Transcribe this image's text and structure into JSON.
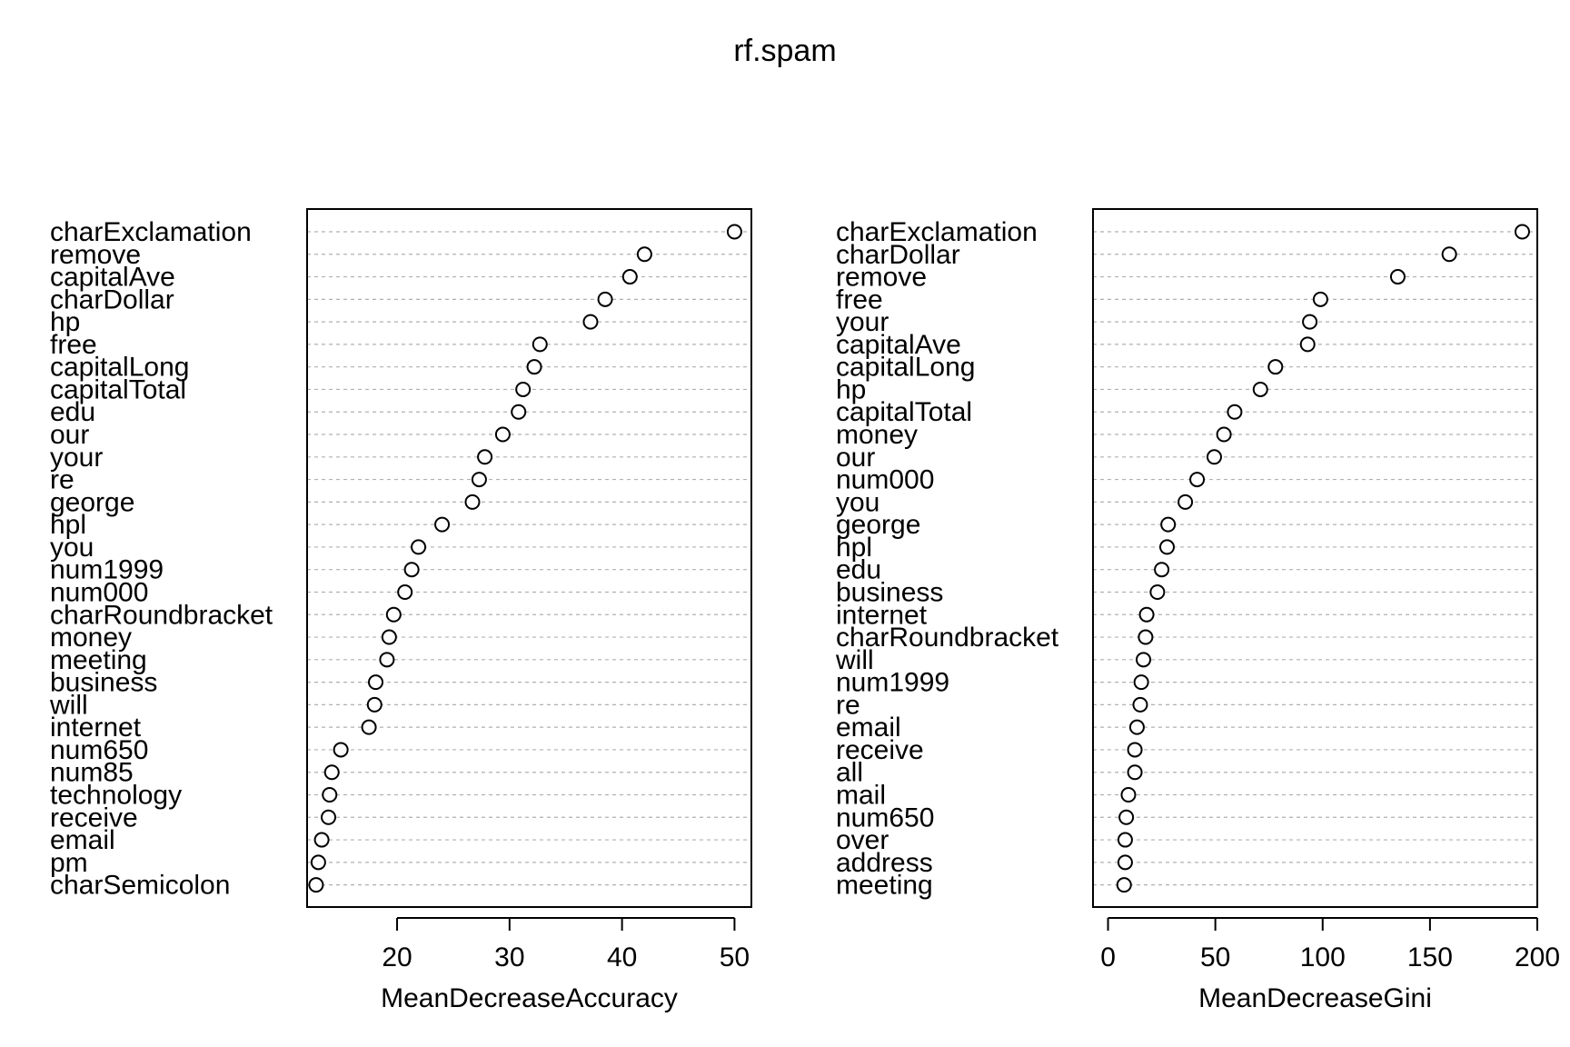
{
  "title": "rf.spam",
  "chart_data": [
    {
      "type": "scatter",
      "subtype": "dotchart",
      "xlabel": "MeanDecreaseAccuracy",
      "ylabel": "",
      "xlim": [
        12,
        51.5
      ],
      "xticks": [
        20,
        30,
        40,
        50
      ],
      "grid": "horizontal dotted",
      "categories": [
        "charExclamation",
        "remove",
        "capitalAve",
        "charDollar",
        "hp",
        "free",
        "capitalLong",
        "capitalTotal",
        "edu",
        "our",
        "your",
        "re",
        "george",
        "hpl",
        "you",
        "num1999",
        "num000",
        "charRoundbracket",
        "money",
        "meeting",
        "business",
        "will",
        "internet",
        "num650",
        "num85",
        "technology",
        "receive",
        "email",
        "pm",
        "charSemicolon"
      ],
      "values": [
        50.0,
        42.0,
        40.7,
        38.5,
        37.2,
        32.7,
        32.2,
        31.2,
        30.8,
        29.4,
        27.8,
        27.3,
        26.7,
        24.0,
        21.9,
        21.3,
        20.7,
        19.7,
        19.3,
        19.1,
        18.1,
        18.0,
        17.5,
        15.0,
        14.2,
        14.0,
        13.9,
        13.3,
        13.0,
        12.8
      ]
    },
    {
      "type": "scatter",
      "subtype": "dotchart",
      "xlabel": "MeanDecreaseGini",
      "ylabel": "",
      "xlim": [
        -7,
        200
      ],
      "xticks": [
        0,
        50,
        100,
        150,
        200
      ],
      "grid": "horizontal dotted",
      "categories": [
        "charExclamation",
        "charDollar",
        "remove",
        "free",
        "your",
        "capitalAve",
        "capitalLong",
        "hp",
        "capitalTotal",
        "money",
        "our",
        "num000",
        "you",
        "george",
        "hpl",
        "edu",
        "business",
        "internet",
        "charRoundbracket",
        "will",
        "num1999",
        "re",
        "email",
        "receive",
        "all",
        "mail",
        "num650",
        "over",
        "address",
        "meeting"
      ],
      "values": [
        193.0,
        159.0,
        135.0,
        99.0,
        94.0,
        93.0,
        78.0,
        71.0,
        59.0,
        54.0,
        49.5,
        41.5,
        36.0,
        28.0,
        27.5,
        25.0,
        23.0,
        18.0,
        17.5,
        16.5,
        15.5,
        15.0,
        13.5,
        12.5,
        12.5,
        9.5,
        8.5,
        8.0,
        8.0,
        7.5
      ]
    }
  ]
}
